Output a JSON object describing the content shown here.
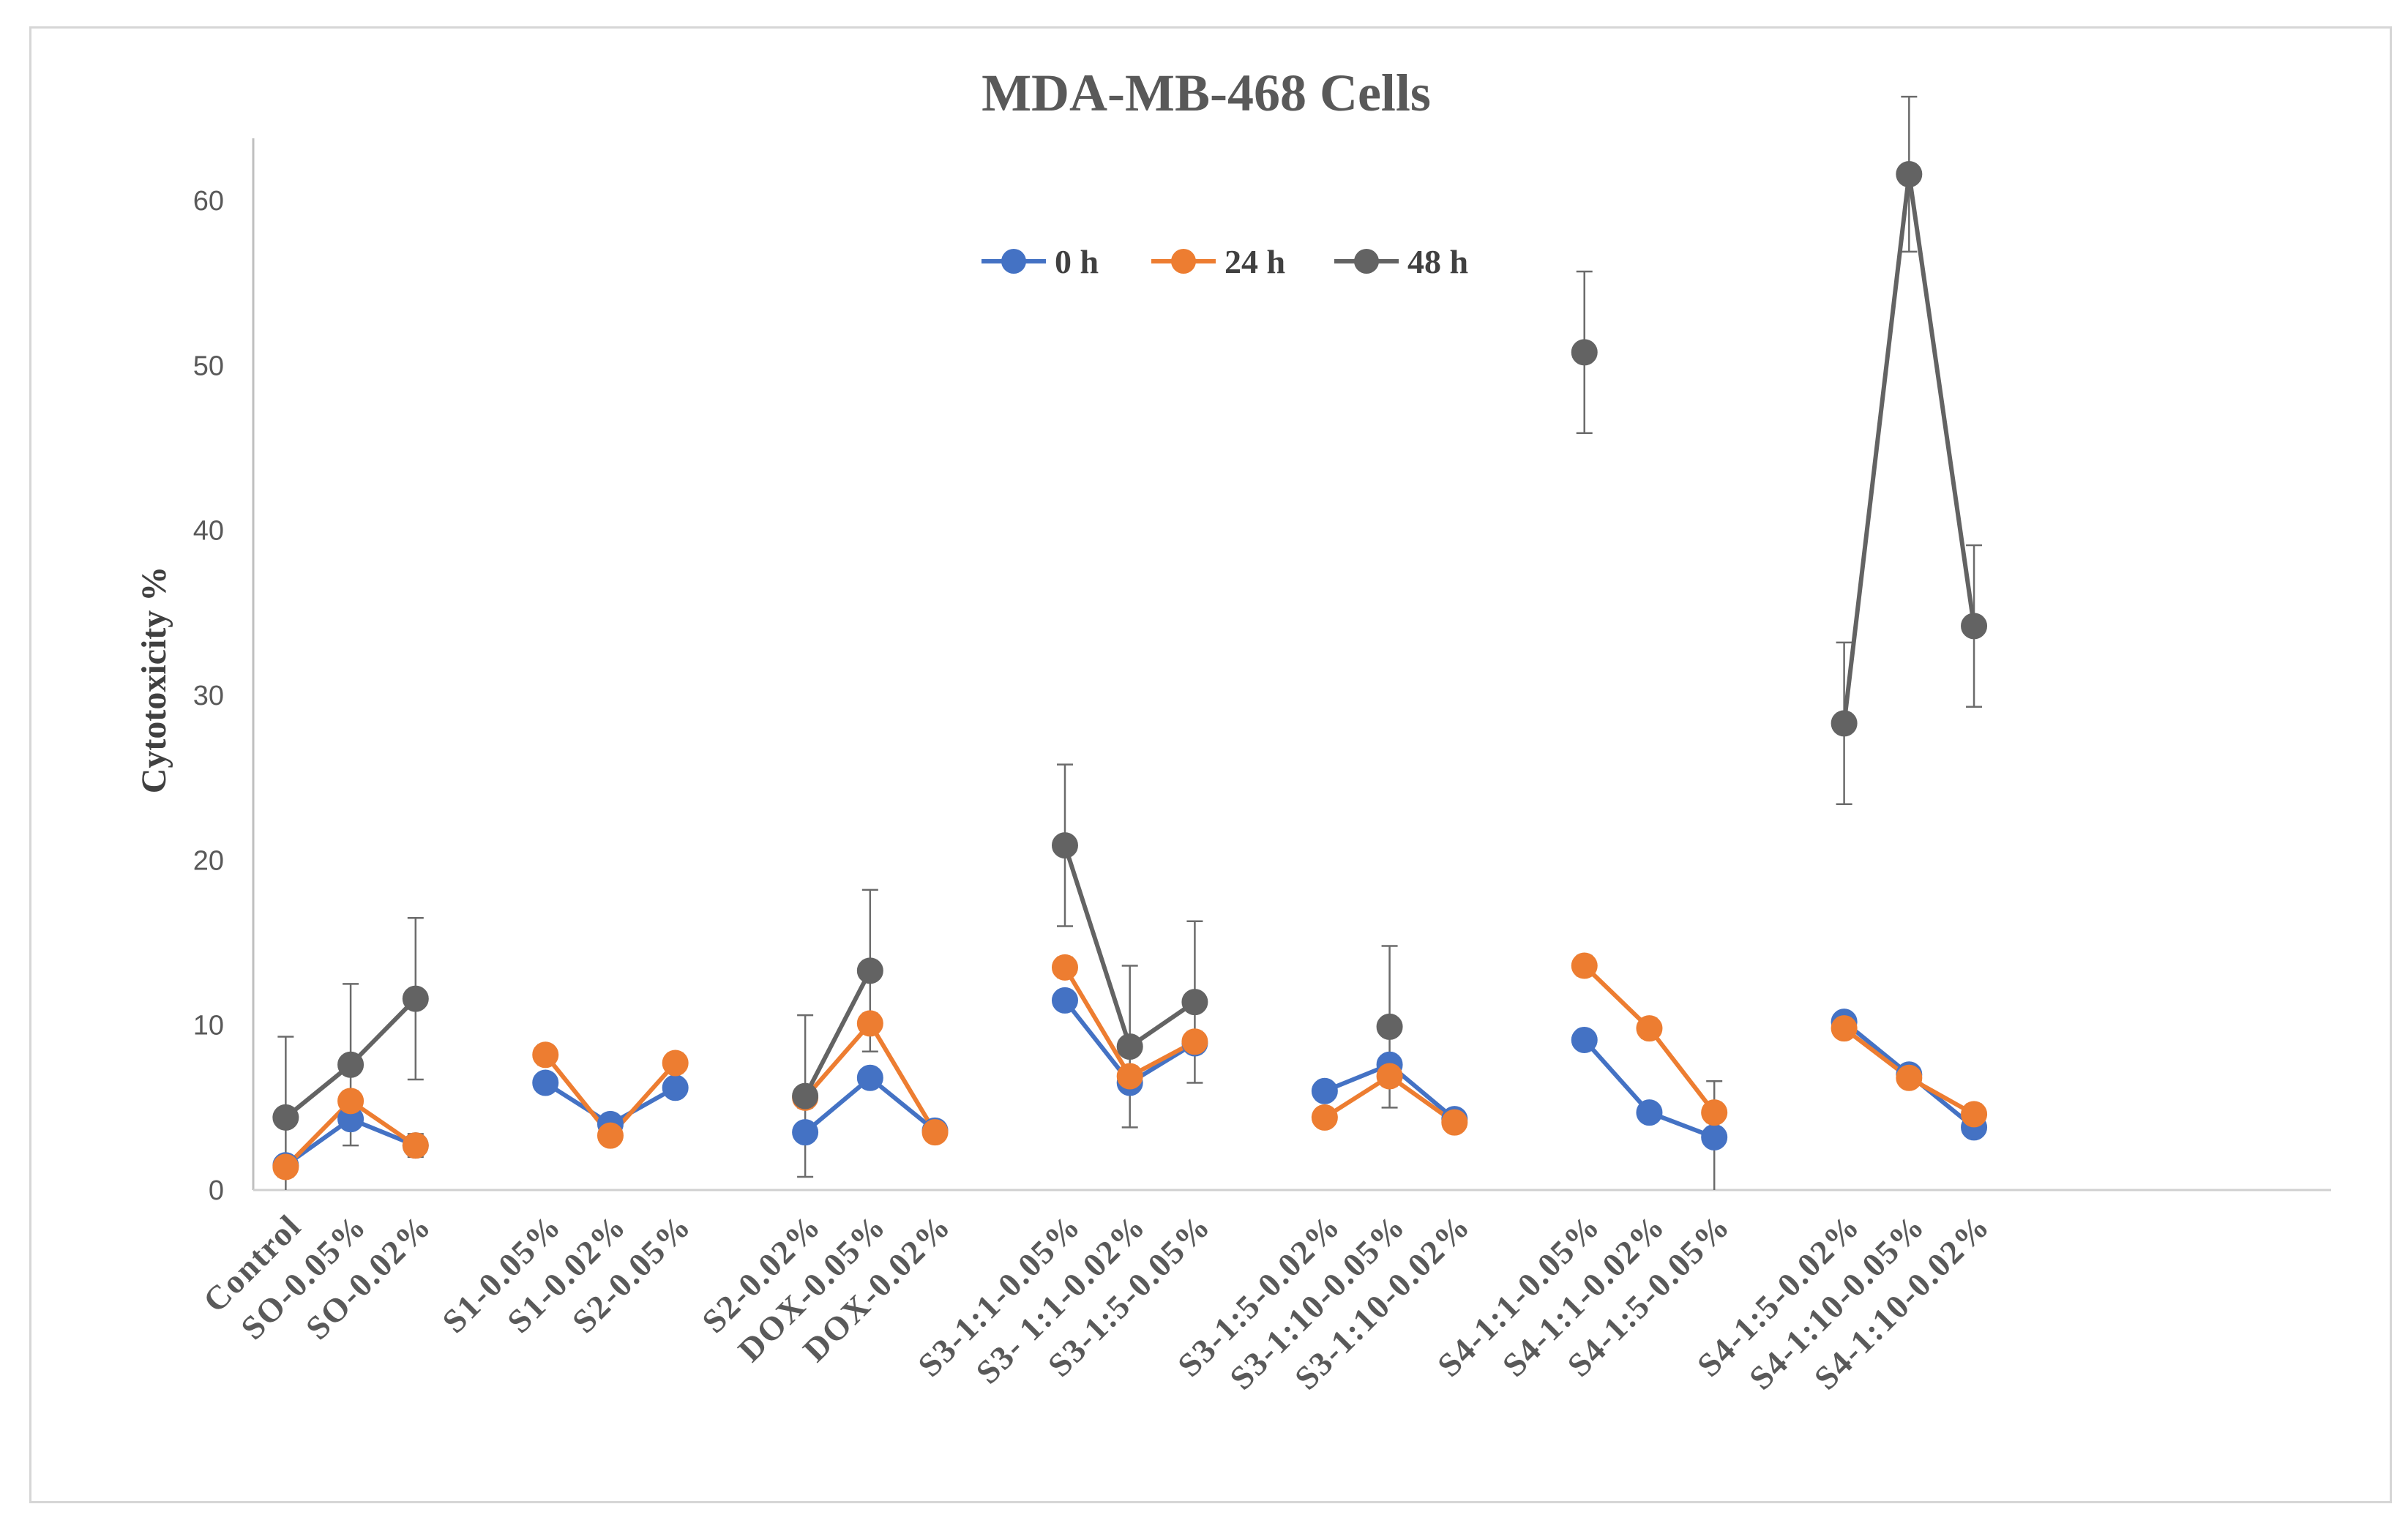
{
  "chart_data": {
    "type": "line",
    "title": "MDA-MB-468 Cells",
    "xlabel": "",
    "ylabel": "Cytotoxicity %",
    "ylim": [
      0,
      62
    ],
    "yticks": [
      0,
      10,
      20,
      30,
      40,
      50,
      60
    ],
    "grid": false,
    "legend_position": "top-center",
    "slots": 32,
    "segments": [
      [
        0,
        1,
        2
      ],
      [
        4,
        5,
        6
      ],
      [
        8,
        9,
        10
      ],
      [
        12,
        13,
        14
      ],
      [
        16,
        17,
        18
      ],
      [
        20,
        21,
        22
      ],
      [
        24,
        25,
        26
      ]
    ],
    "categories": [
      {
        "slot": 0,
        "label": "Control"
      },
      {
        "slot": 1,
        "label": "SO-0.05%"
      },
      {
        "slot": 2,
        "label": "SO-0.02%"
      },
      {
        "slot": 4,
        "label": "S1-0.05%"
      },
      {
        "slot": 5,
        "label": "S1-0.02%"
      },
      {
        "slot": 6,
        "label": "S2-0.05%"
      },
      {
        "slot": 8,
        "label": "S2-0.02%"
      },
      {
        "slot": 9,
        "label": "DOX-0.05%"
      },
      {
        "slot": 10,
        "label": "DOX-0.02%"
      },
      {
        "slot": 12,
        "label": "S3-1:1-0.05%"
      },
      {
        "slot": 13,
        "label": "S3- 1:1-0.02%"
      },
      {
        "slot": 14,
        "label": "S3-1:5-0.05%"
      },
      {
        "slot": 16,
        "label": "S3-1:5-0.02%"
      },
      {
        "slot": 17,
        "label": "S3-1:10-0.05%"
      },
      {
        "slot": 18,
        "label": "S3-1:10-0.02%"
      },
      {
        "slot": 20,
        "label": "S4-1:1-0.05%"
      },
      {
        "slot": 21,
        "label": "S4-1:1-0.02%"
      },
      {
        "slot": 22,
        "label": "S4-1:5-0.05%"
      },
      {
        "slot": 24,
        "label": "S4-1:5-0.02%"
      },
      {
        "slot": 25,
        "label": "S4-1:10-0.05%"
      },
      {
        "slot": 26,
        "label": "S4-1:10-0.02%"
      }
    ],
    "series": [
      {
        "name": "0 h",
        "color": "#4472C4",
        "values": [
          1.5,
          4.3,
          2.7,
          6.5,
          4.0,
          6.2,
          3.5,
          6.8,
          3.6,
          11.5,
          6.5,
          8.9,
          6.0,
          7.6,
          4.3,
          9.1,
          4.7,
          3.2,
          10.2,
          7.0,
          3.8
        ],
        "errors": [
          0.4,
          0.5,
          0.4,
          0.4,
          0.4,
          0.4,
          0.4,
          0.4,
          0.4,
          0.4,
          0.4,
          0.4,
          0.4,
          0.4,
          0.4,
          0.4,
          0.4,
          3.4,
          0.4,
          0.4,
          0.4
        ]
      },
      {
        "name": "24 h",
        "color": "#ED7D31",
        "values": [
          1.4,
          5.4,
          2.7,
          8.2,
          3.3,
          7.7,
          5.6,
          10.1,
          3.5,
          13.5,
          6.9,
          9.0,
          4.4,
          6.9,
          4.1,
          13.6,
          9.8,
          4.7,
          9.8,
          6.8,
          4.6
        ],
        "errors": [
          0.6,
          0.6,
          0.7,
          0.6,
          0.5,
          0.6,
          0.6,
          0.6,
          0.5,
          0.6,
          0.6,
          0.6,
          0.5,
          0.6,
          0.5,
          0.6,
          0.6,
          0.6,
          0.5,
          0.5,
          0.6
        ]
      },
      {
        "name": "48 h",
        "color": "#636363",
        "values": [
          4.4,
          7.6,
          11.6,
          null,
          null,
          null,
          5.7,
          13.3,
          null,
          20.9,
          8.7,
          11.4,
          null,
          9.9,
          null,
          50.8,
          null,
          null,
          28.3,
          61.6,
          34.2
        ],
        "errors": [
          4.9,
          4.9,
          4.9,
          null,
          null,
          null,
          4.9,
          4.9,
          null,
          4.9,
          4.9,
          4.9,
          null,
          4.9,
          null,
          4.9,
          null,
          null,
          4.9,
          4.7,
          4.9
        ]
      }
    ]
  }
}
